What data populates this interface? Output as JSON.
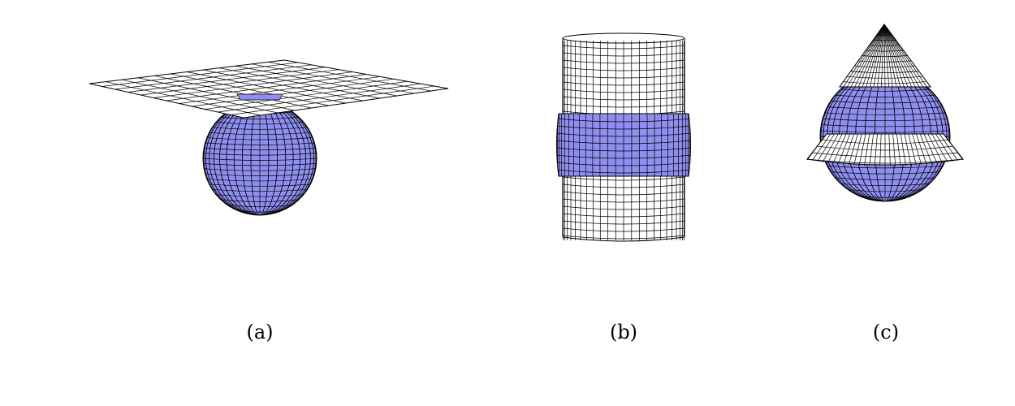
{
  "colors": {
    "shaded_surface": "#8f8ff2",
    "mesh_line": "#000000",
    "background": "#ffffff",
    "unshaded_surface": "#ffffff"
  },
  "panels": [
    {
      "id": "a",
      "caption": "(a)",
      "description_icon": "sphere-plane-intersection-icon"
    },
    {
      "id": "b",
      "caption": "(b)",
      "description_icon": "sphere-cylinder-intersection-icon"
    },
    {
      "id": "c",
      "caption": "(c)",
      "description_icon": "sphere-cone-intersection-icon"
    }
  ]
}
